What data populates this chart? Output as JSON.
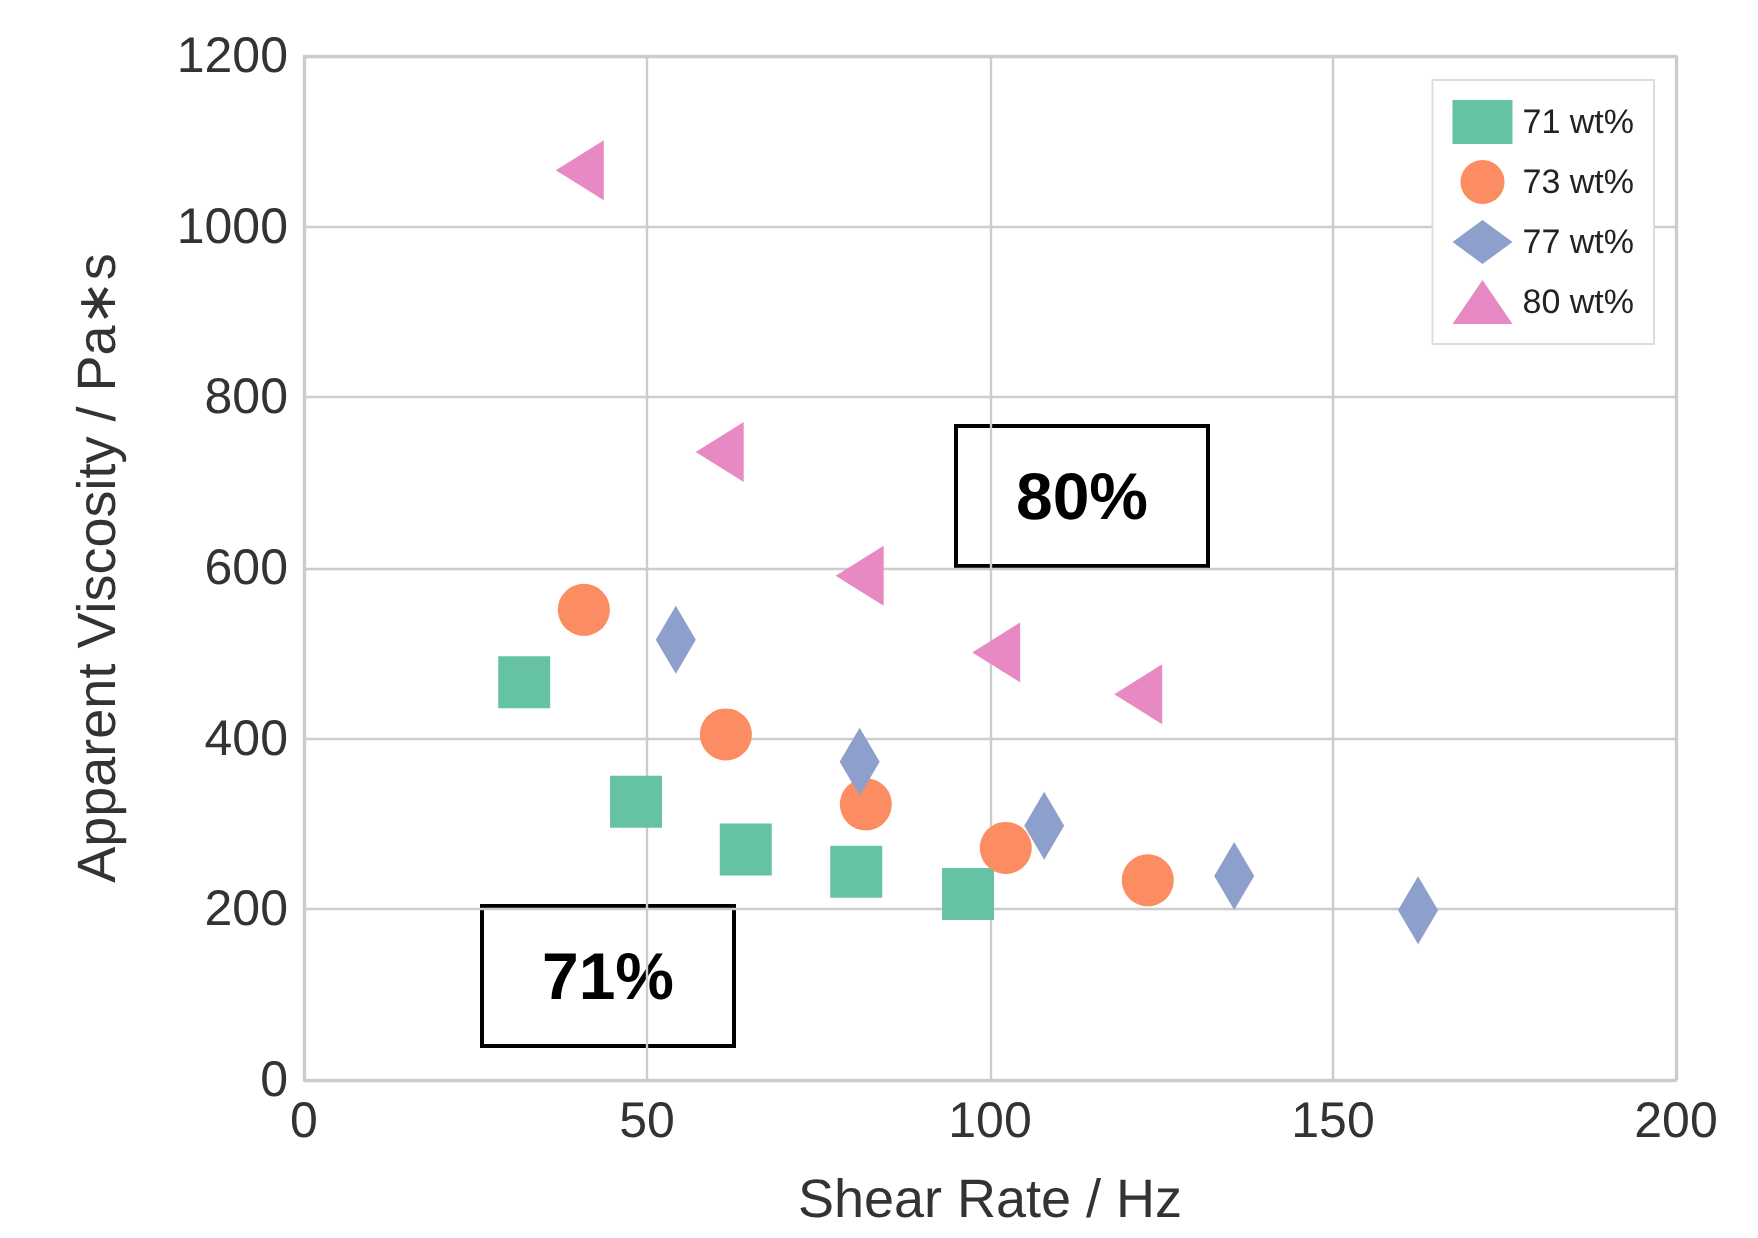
{
  "chart_data": {
    "type": "scatter",
    "xlabel": "Shear Rate / Hz",
    "ylabel": "Apparent Viscosity / Pa∗s",
    "xlim": [
      0,
      200
    ],
    "xticks": [
      0,
      50,
      100,
      150,
      200
    ],
    "ylim": [
      0,
      1200
    ],
    "yticks": [
      0,
      200,
      400,
      600,
      800,
      1000,
      1200
    ],
    "grid": true,
    "legend": "top right",
    "annotations": [
      "80%",
      "71%"
    ],
    "series": [
      {
        "name": "71 wt%",
        "color": "#66c2a5",
        "marker": "square",
        "x": [
          32.1,
          48.4,
          64.4,
          80.5,
          96.8
        ],
        "values": [
          466,
          326,
          270,
          244,
          218
        ]
      },
      {
        "name": "73 wt%",
        "color": "#fc8d62",
        "marker": "circle",
        "x": [
          40.8,
          61.5,
          81.9,
          102.3,
          123
        ],
        "values": [
          551,
          405,
          323,
          272,
          234
        ]
      },
      {
        "name": "77 wt%",
        "color": "#8da0cb",
        "marker": "diamond",
        "x": [
          54.2,
          81,
          107.9,
          135.6,
          162.4
        ],
        "values": [
          516,
          373,
          298,
          239,
          199
        ]
      },
      {
        "name": "80 wt%",
        "color": "#e78ac3",
        "marker": "triangle",
        "x": [
          40.2,
          60.6,
          81,
          100.9,
          121.6
        ],
        "values": [
          1066,
          736,
          591,
          501,
          452
        ]
      }
    ]
  }
}
